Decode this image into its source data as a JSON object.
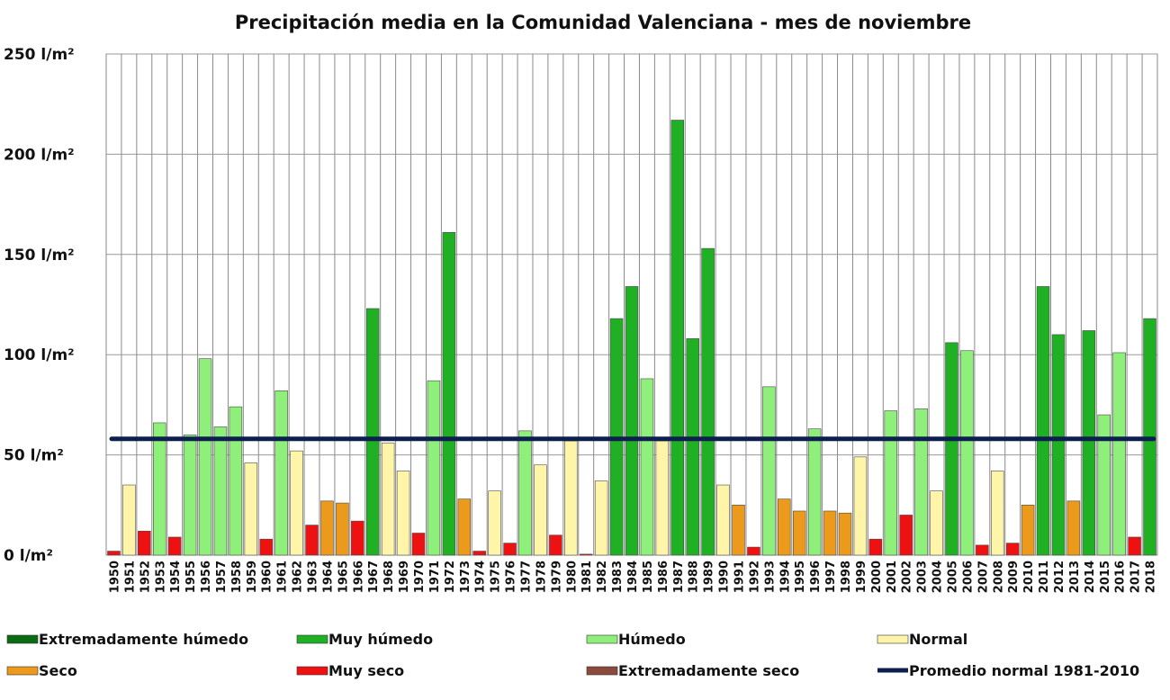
{
  "chart_data": {
    "type": "bar",
    "title": "Precipitación media en la Comunidad Valenciana - mes de noviembre",
    "xlabel": "",
    "ylabel": "",
    "ylim": [
      0,
      250
    ],
    "yticks": [
      "0 l/m²",
      "50 l/m²",
      "100 l/m²",
      "150 l/m²",
      "200 l/m²",
      "250 l/m²"
    ],
    "ytick_values": [
      0,
      50,
      100,
      150,
      200,
      250
    ],
    "grid": true,
    "legend_position": "bottom",
    "categories": [
      "1950",
      "1951",
      "1952",
      "1953",
      "1954",
      "1955",
      "1956",
      "1957",
      "1958",
      "1959",
      "1960",
      "1961",
      "1962",
      "1963",
      "1964",
      "1965",
      "1966",
      "1967",
      "1968",
      "1969",
      "1970",
      "1971",
      "1972",
      "1973",
      "1974",
      "1975",
      "1976",
      "1977",
      "1978",
      "1979",
      "1980",
      "1981",
      "1982",
      "1983",
      "1984",
      "1985",
      "1986",
      "1987",
      "1988",
      "1989",
      "1990",
      "1991",
      "1992",
      "1993",
      "1994",
      "1995",
      "1996",
      "1997",
      "1998",
      "1999",
      "2000",
      "2001",
      "2002",
      "2003",
      "2004",
      "2005",
      "2006",
      "2007",
      "2008",
      "2009",
      "2010",
      "2011",
      "2012",
      "2013",
      "2014",
      "2015",
      "2016",
      "2017",
      "2018"
    ],
    "values": [
      2,
      35,
      12,
      66,
      9,
      60,
      98,
      64,
      74,
      46,
      8,
      82,
      52,
      15,
      27,
      26,
      17,
      123,
      56,
      42,
      11,
      87,
      161,
      28,
      2,
      32,
      6,
      62,
      45,
      10,
      57,
      0.5,
      37,
      118,
      134,
      88,
      57,
      217,
      108,
      153,
      35,
      25,
      4,
      84,
      28,
      22,
      63,
      22,
      21,
      49,
      8,
      72,
      20,
      73,
      32,
      106,
      102,
      5,
      42,
      6,
      25,
      134,
      110,
      27,
      112,
      70,
      101,
      9,
      118
    ],
    "class_keys": [
      "muy_seco",
      "normal",
      "muy_seco",
      "humedo",
      "muy_seco",
      "humedo",
      "humedo",
      "humedo",
      "humedo",
      "normal",
      "muy_seco",
      "humedo",
      "normal",
      "muy_seco",
      "seco",
      "seco",
      "muy_seco",
      "muy_humedo",
      "normal",
      "normal",
      "muy_seco",
      "humedo",
      "muy_humedo",
      "seco",
      "muy_seco",
      "normal",
      "muy_seco",
      "humedo",
      "normal",
      "muy_seco",
      "normal",
      "muy_seco",
      "normal",
      "muy_humedo",
      "muy_humedo",
      "humedo",
      "normal",
      "muy_humedo",
      "muy_humedo",
      "muy_humedo",
      "normal",
      "seco",
      "muy_seco",
      "humedo",
      "seco",
      "seco",
      "humedo",
      "seco",
      "seco",
      "normal",
      "muy_seco",
      "humedo",
      "muy_seco",
      "humedo",
      "normal",
      "muy_humedo",
      "humedo",
      "muy_seco",
      "normal",
      "muy_seco",
      "seco",
      "muy_humedo",
      "muy_humedo",
      "seco",
      "muy_humedo",
      "humedo",
      "humedo",
      "muy_seco",
      "muy_humedo"
    ],
    "reference_line": {
      "name": "Promedio normal 1981-2010",
      "value": 58,
      "color": "#0d1f4e"
    },
    "classes": {
      "extremadamente_humedo": {
        "label": "Extremadamente húmedo",
        "color": "#0a6b12"
      },
      "muy_humedo": {
        "label": "Muy húmedo",
        "color": "#1fb024"
      },
      "humedo": {
        "label": "Húmedo",
        "color": "#8ef07a"
      },
      "normal": {
        "label": "Normal",
        "color": "#fff5a8"
      },
      "seco": {
        "label": "Seco",
        "color": "#eb9a1c"
      },
      "muy_seco": {
        "label": "Muy seco",
        "color": "#ee1111"
      },
      "extremadamente_seco": {
        "label": "Extremadamente seco",
        "color": "#8b4a3c"
      }
    },
    "legend": [
      {
        "key": "extremadamente_humedo",
        "label": "Extremadamente húmedo",
        "color": "#0a6b12"
      },
      {
        "key": "muy_humedo",
        "label": "Muy húmedo",
        "color": "#1fb024"
      },
      {
        "key": "humedo",
        "label": "Húmedo",
        "color": "#8ef07a"
      },
      {
        "key": "normal",
        "label": "Normal",
        "color": "#fff5a8"
      },
      {
        "key": "seco",
        "label": "Seco",
        "color": "#eb9a1c"
      },
      {
        "key": "muy_seco",
        "label": "Muy seco",
        "color": "#ee1111"
      },
      {
        "key": "extremadamente_seco",
        "label": "Extremadamente seco",
        "color": "#8b4a3c"
      },
      {
        "key": "promedio",
        "label": "Promedio normal 1981-2010",
        "color": "#0d1f4e"
      }
    ]
  }
}
